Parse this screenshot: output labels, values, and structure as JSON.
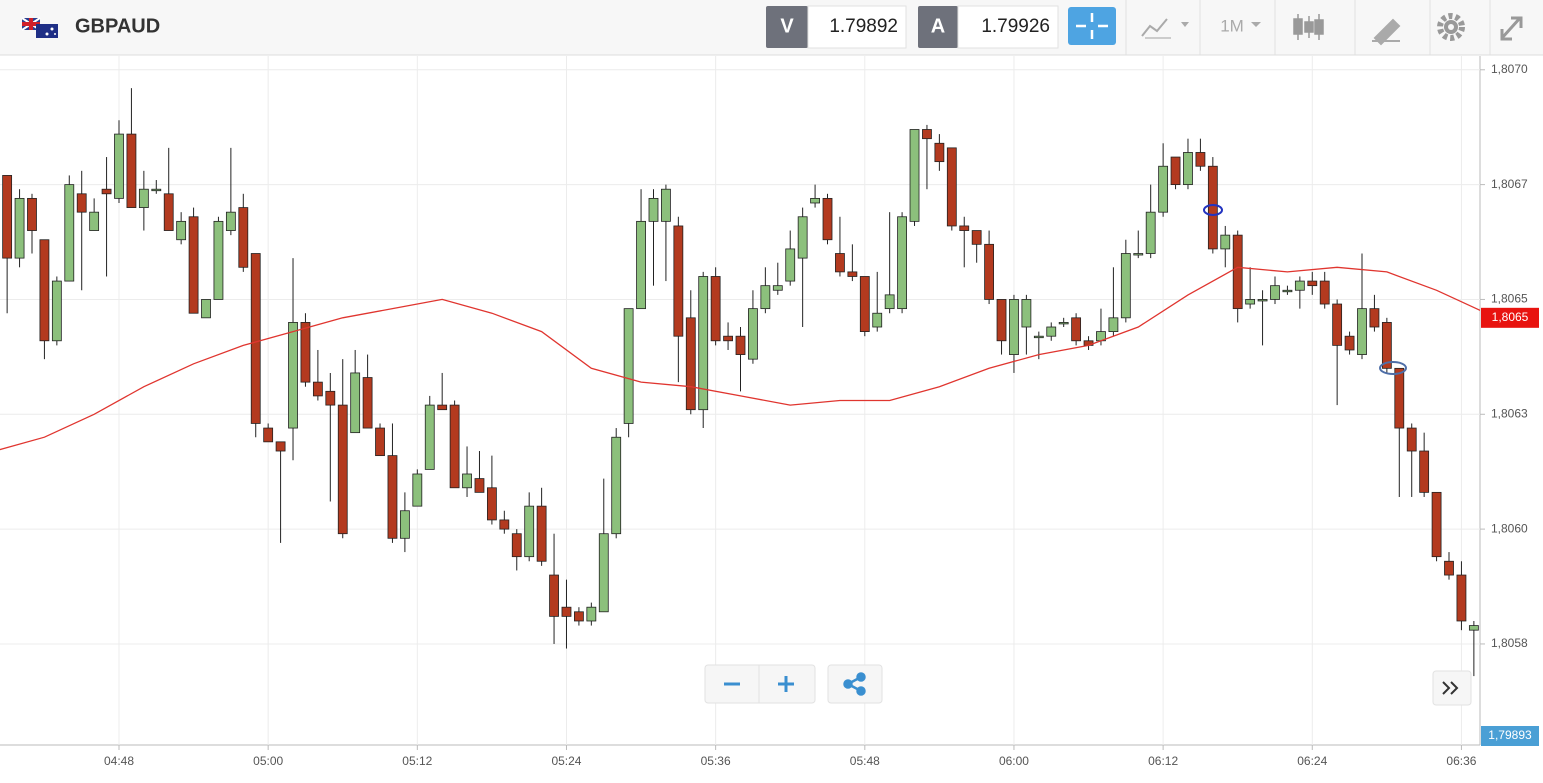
{
  "header": {
    "symbol": "GBPAUD",
    "bid_tag": "V",
    "bid": 1.79892,
    "ask_tag": "A",
    "ask": 1.79926,
    "timeframe": "1M"
  },
  "chart_data": {
    "type": "candlestick",
    "x": [
      "04:39",
      "04:40",
      "04:41",
      "04:42",
      "04:43",
      "04:44",
      "04:45",
      "04:46",
      "04:47",
      "04:48",
      "04:49",
      "04:50",
      "04:51",
      "04:52",
      "04:53",
      "04:54",
      "04:55",
      "04:56",
      "04:57",
      "04:58",
      "04:59",
      "05:00",
      "05:01",
      "05:02",
      "05:03",
      "05:04",
      "05:05",
      "05:06",
      "05:07",
      "05:08",
      "05:09",
      "05:10",
      "05:11",
      "05:12",
      "05:13",
      "05:14",
      "05:15",
      "05:16",
      "05:17",
      "05:18",
      "05:19",
      "05:20",
      "05:21",
      "05:22",
      "05:23",
      "05:24",
      "05:25",
      "05:26",
      "05:27",
      "05:28",
      "05:29",
      "05:30",
      "05:31",
      "05:32",
      "05:33",
      "05:34",
      "05:35",
      "05:36",
      "05:37",
      "05:38",
      "05:39",
      "05:40",
      "05:41",
      "05:42",
      "05:43",
      "05:44",
      "05:45",
      "05:46",
      "05:47",
      "05:48",
      "05:49",
      "05:50",
      "05:51",
      "05:52",
      "05:53",
      "05:54",
      "05:55",
      "05:56",
      "05:57",
      "05:58",
      "05:59",
      "06:00",
      "06:01",
      "06:02",
      "06:03",
      "06:04",
      "06:05",
      "06:06",
      "06:07",
      "06:08",
      "06:09",
      "06:10",
      "06:11",
      "06:12",
      "06:13",
      "06:14",
      "06:15",
      "06:16",
      "06:17",
      "06:18",
      "06:19",
      "06:20",
      "06:21",
      "06:22",
      "06:23",
      "06:24",
      "06:25",
      "06:26",
      "06:27",
      "06:28",
      "06:29",
      "06:30",
      "06:31",
      "06:32",
      "06:33",
      "06:34",
      "06:35",
      "06:36",
      "06:37"
    ],
    "open": [
      1.80677,
      1.80659,
      1.80672,
      1.80663,
      1.80641,
      1.80654,
      1.80673,
      1.80665,
      1.80674,
      1.80672,
      1.80686,
      1.8067,
      1.80674,
      1.80673,
      1.80663,
      1.80668,
      1.80646,
      1.8065,
      1.80665,
      1.8067,
      1.8066,
      1.80622,
      1.80619,
      1.80622,
      1.80645,
      1.80632,
      1.8063,
      1.80627,
      1.80621,
      1.80633,
      1.80622,
      1.80616,
      1.80598,
      1.80605,
      1.80613,
      1.80627,
      1.80627,
      1.80609,
      1.80611,
      1.80609,
      1.80602,
      1.80599,
      1.80594,
      1.80605,
      1.8059,
      1.80583,
      1.80582,
      1.8058,
      1.80582,
      1.80599,
      1.80623,
      1.80648,
      1.80667,
      1.80667,
      1.80666,
      1.80646,
      1.80626,
      1.80655,
      1.80642,
      1.80642,
      1.80637,
      1.80648,
      1.80652,
      1.80654,
      1.80659,
      1.80671,
      1.80672,
      1.8066,
      1.80656,
      1.80655,
      1.80644,
      1.80648,
      1.80648,
      1.80667,
      1.80687,
      1.80684,
      1.80683,
      1.80666,
      1.80665,
      1.80662,
      1.8065,
      1.80638,
      1.80644,
      1.80642,
      1.80642,
      1.80645,
      1.80646,
      1.80641,
      1.80641,
      1.80643,
      1.80646,
      1.8066,
      1.8066,
      1.80669,
      1.80681,
      1.80675,
      1.80682,
      1.80679,
      1.80661,
      1.80664,
      1.80649,
      1.8065,
      1.8065,
      1.80652,
      1.80652,
      1.80654,
      1.80654,
      1.80649,
      1.80642,
      1.80638,
      1.80648,
      1.80645,
      1.80635,
      1.80622,
      1.80617,
      1.80608,
      1.80593,
      1.8059,
      1.80578
    ],
    "high": [
      1.80677,
      1.80674,
      1.80673,
      1.80663,
      1.80655,
      1.80677,
      1.80678,
      1.80672,
      1.80681,
      1.80689,
      1.80696,
      1.80678,
      1.80676,
      1.80683,
      1.80669,
      1.8067,
      1.8065,
      1.80668,
      1.80683,
      1.80673,
      1.8066,
      1.80623,
      1.80619,
      1.80659,
      1.80647,
      1.80639,
      1.80634,
      1.80637,
      1.80639,
      1.80638,
      1.80623,
      1.80623,
      1.80608,
      1.80613,
      1.80629,
      1.80634,
      1.80628,
      1.80618,
      1.80617,
      1.80616,
      1.80604,
      1.806,
      1.80608,
      1.80609,
      1.80599,
      1.80589,
      1.80583,
      1.80584,
      1.80611,
      1.80622,
      1.80648,
      1.80674,
      1.80674,
      1.80675,
      1.80668,
      1.80652,
      1.80656,
      1.80657,
      1.80645,
      1.80644,
      1.80652,
      1.80657,
      1.80658,
      1.80665,
      1.8067,
      1.80675,
      1.80673,
      1.80668,
      1.80662,
      1.80655,
      1.80656,
      1.80669,
      1.80669,
      1.80687,
      1.80688,
      1.80686,
      1.80683,
      1.80668,
      1.80665,
      1.80665,
      1.8065,
      1.80651,
      1.80651,
      1.80643,
      1.80645,
      1.80646,
      1.80647,
      1.80642,
      1.80648,
      1.80657,
      1.80663,
      1.80665,
      1.80675,
      1.80684,
      1.80681,
      1.80685,
      1.80685,
      1.80681,
      1.80666,
      1.80665,
      1.80657,
      1.80652,
      1.80655,
      1.80653,
      1.80655,
      1.80656,
      1.80656,
      1.8065,
      1.80643,
      1.8066,
      1.80651,
      1.80646,
      1.80635,
      1.80623,
      1.80621,
      1.80608,
      1.80595,
      1.80593,
      1.8058
    ],
    "low": [
      1.80647,
      1.80657,
      1.8066,
      1.80637,
      1.8064,
      1.80654,
      1.80652,
      1.80665,
      1.80655,
      1.80671,
      1.8067,
      1.80665,
      1.80673,
      1.80665,
      1.80662,
      1.80647,
      1.80646,
      1.8065,
      1.80664,
      1.80656,
      1.8062,
      1.80619,
      1.80597,
      1.80615,
      1.80631,
      1.80628,
      1.80606,
      1.80598,
      1.80621,
      1.80622,
      1.80616,
      1.80597,
      1.80595,
      1.80605,
      1.80613,
      1.80626,
      1.80609,
      1.80607,
      1.80608,
      1.80601,
      1.80599,
      1.80591,
      1.80593,
      1.80592,
      1.80575,
      1.80574,
      1.80579,
      1.80579,
      1.80582,
      1.80598,
      1.8062,
      1.80648,
      1.80653,
      1.80654,
      1.80632,
      1.80625,
      1.80622,
      1.8064,
      1.80639,
      1.8063,
      1.80636,
      1.80647,
      1.80651,
      1.80653,
      1.80644,
      1.8067,
      1.80662,
      1.80655,
      1.80654,
      1.80642,
      1.80643,
      1.80647,
      1.80647,
      1.80666,
      1.80674,
      1.80678,
      1.80665,
      1.80657,
      1.80658,
      1.80649,
      1.80638,
      1.80634,
      1.80638,
      1.80637,
      1.80641,
      1.80644,
      1.8064,
      1.80639,
      1.8064,
      1.80642,
      1.80645,
      1.80659,
      1.80659,
      1.80668,
      1.80674,
      1.80674,
      1.80678,
      1.8066,
      1.80657,
      1.80645,
      1.80648,
      1.8064,
      1.80649,
      1.80651,
      1.80648,
      1.80651,
      1.80648,
      1.80627,
      1.80638,
      1.80637,
      1.80643,
      1.80634,
      1.80607,
      1.80607,
      1.80607,
      1.80593,
      1.80589,
      1.80578,
      1.80568
    ],
    "close": [
      1.80659,
      1.80672,
      1.80665,
      1.80641,
      1.80654,
      1.80675,
      1.80669,
      1.80669,
      1.80673,
      1.80686,
      1.8067,
      1.80674,
      1.80674,
      1.80665,
      1.80667,
      1.80647,
      1.8065,
      1.80667,
      1.80669,
      1.80657,
      1.80623,
      1.80619,
      1.80617,
      1.80645,
      1.80632,
      1.80629,
      1.80627,
      1.80599,
      1.80634,
      1.80622,
      1.80616,
      1.80598,
      1.80604,
      1.80612,
      1.80627,
      1.80626,
      1.80609,
      1.80612,
      1.80608,
      1.80602,
      1.806,
      1.80594,
      1.80605,
      1.80593,
      1.80581,
      1.80581,
      1.8058,
      1.80583,
      1.80599,
      1.8062,
      1.80648,
      1.80667,
      1.80672,
      1.80674,
      1.80642,
      1.80626,
      1.80655,
      1.80641,
      1.80641,
      1.80638,
      1.80648,
      1.80653,
      1.80653,
      1.80661,
      1.80668,
      1.80672,
      1.80663,
      1.80656,
      1.80655,
      1.80643,
      1.80647,
      1.80651,
      1.80668,
      1.80687,
      1.80685,
      1.8068,
      1.80666,
      1.80665,
      1.80662,
      1.8065,
      1.80641,
      1.8065,
      1.8065,
      1.80642,
      1.80644,
      1.80645,
      1.80641,
      1.8064,
      1.80643,
      1.80646,
      1.8066,
      1.8066,
      1.80669,
      1.80679,
      1.80675,
      1.80682,
      1.80679,
      1.80661,
      1.80664,
      1.80648,
      1.8065,
      1.8065,
      1.80653,
      1.80652,
      1.80654,
      1.80653,
      1.80649,
      1.8064,
      1.80639,
      1.80648,
      1.80644,
      1.80635,
      1.80622,
      1.80617,
      1.80608,
      1.80594,
      1.8059,
      1.8058,
      1.80579
    ],
    "up_color": "#8cc07c",
    "down_color": "#b33a1f",
    "xlim": [
      "04:38",
      "06:38"
    ],
    "xticks": [
      "04:48",
      "05:00",
      "05:12",
      "05:24",
      "05:36",
      "05:48",
      "06:00",
      "06:12",
      "06:24",
      "06:36"
    ],
    "ylim": [
      1.80553,
      1.80703
    ],
    "yticks": [
      {
        "value": 1.807,
        "label": "1,8070"
      },
      {
        "value": 1.80675,
        "label": "1,8067"
      },
      {
        "value": 1.8065,
        "label": "1,8065"
      },
      {
        "value": 1.80625,
        "label": "1,8063"
      },
      {
        "value": 1.806,
        "label": "1,8060"
      },
      {
        "value": 1.80575,
        "label": "1,8058"
      }
    ],
    "grid": true,
    "overlay": {
      "type": "line",
      "color": "#e0352f",
      "x": [
        "04:38",
        "04:42",
        "04:46",
        "04:50",
        "04:54",
        "04:58",
        "05:02",
        "05:06",
        "05:10",
        "05:14",
        "05:18",
        "05:22",
        "05:26",
        "05:30",
        "05:34",
        "05:38",
        "05:42",
        "05:46",
        "05:50",
        "05:54",
        "05:58",
        "06:02",
        "06:06",
        "06:10",
        "06:14",
        "06:18",
        "06:22",
        "06:26",
        "06:30",
        "06:34",
        "06:38"
      ],
      "values": [
        1.80617,
        1.8062,
        1.80625,
        1.80631,
        1.80636,
        1.8064,
        1.80643,
        1.80646,
        1.80648,
        1.8065,
        1.80647,
        1.80643,
        1.80635,
        1.80632,
        1.80631,
        1.80629,
        1.80627,
        1.80628,
        1.80628,
        1.80631,
        1.80635,
        1.80638,
        1.8064,
        1.80644,
        1.80651,
        1.80657,
        1.80656,
        1.80657,
        1.80656,
        1.80652,
        1.80647
      ]
    },
    "last_price": {
      "value": 1.80646,
      "label": "1,8065"
    },
    "bottom_price_label": "1,79893"
  }
}
